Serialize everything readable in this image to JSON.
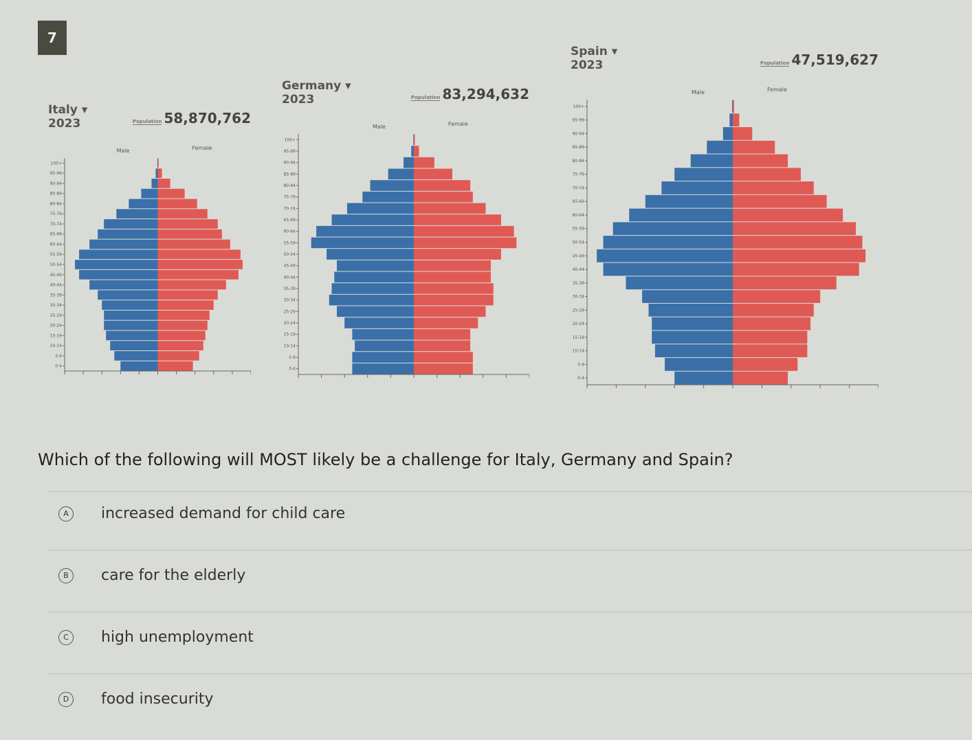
{
  "question_number": "7",
  "population_label": "Population",
  "male_label": "Male",
  "female_label": "Female",
  "colors": {
    "male": "#3a6fa8",
    "female": "#e05a55"
  },
  "chart_data": [
    {
      "type": "bar",
      "subtype": "population-pyramid",
      "country": "Italy ▾",
      "year": "2023",
      "population": "58,870,762",
      "age_groups": [
        "0-4",
        "5-9",
        "10-14",
        "15-19",
        "20-24",
        "25-29",
        "30-34",
        "35-39",
        "40-44",
        "45-49",
        "50-54",
        "55-59",
        "60-64",
        "65-69",
        "70-74",
        "75-79",
        "80-84",
        "85-89",
        "90-94",
        "95-99",
        "100+"
      ],
      "series": [
        {
          "name": "Male",
          "values": [
            1.8,
            2.1,
            2.3,
            2.5,
            2.6,
            2.6,
            2.7,
            2.9,
            3.3,
            3.8,
            4.0,
            3.8,
            3.3,
            2.9,
            2.6,
            2.0,
            1.4,
            0.8,
            0.3,
            0.1,
            0.02
          ]
        },
        {
          "name": "Female",
          "values": [
            1.7,
            2.0,
            2.2,
            2.3,
            2.4,
            2.5,
            2.7,
            2.9,
            3.3,
            3.9,
            4.1,
            4.0,
            3.5,
            3.1,
            2.9,
            2.4,
            1.9,
            1.3,
            0.6,
            0.2,
            0.04
          ]
        }
      ]
    },
    {
      "type": "bar",
      "subtype": "population-pyramid",
      "country": "Germany ▾",
      "year": "2023",
      "population": "83,294,632",
      "age_groups": [
        "0-4",
        "5-9",
        "10-14",
        "15-19",
        "20-24",
        "25-29",
        "30-34",
        "35-39",
        "40-44",
        "45-49",
        "50-54",
        "55-59",
        "60-64",
        "65-69",
        "70-74",
        "75-79",
        "80-84",
        "85-89",
        "90-94",
        "95-99",
        "100+"
      ],
      "series": [
        {
          "name": "Male",
          "values": [
            2.4,
            2.4,
            2.3,
            2.4,
            2.7,
            3.0,
            3.3,
            3.2,
            3.1,
            3.0,
            3.4,
            4.0,
            3.8,
            3.2,
            2.6,
            2.0,
            1.7,
            1.0,
            0.4,
            0.1,
            0.02
          ]
        },
        {
          "name": "Female",
          "values": [
            2.3,
            2.3,
            2.2,
            2.2,
            2.5,
            2.8,
            3.1,
            3.1,
            3.0,
            3.0,
            3.4,
            4.0,
            3.9,
            3.4,
            2.8,
            2.3,
            2.2,
            1.5,
            0.8,
            0.2,
            0.04
          ]
        }
      ]
    },
    {
      "type": "bar",
      "subtype": "population-pyramid",
      "country": "Spain ▾",
      "year": "2023",
      "population": "47,519,627",
      "age_groups": [
        "0-4",
        "5-9",
        "10-14",
        "15-19",
        "20-24",
        "25-29",
        "30-34",
        "35-39",
        "40-44",
        "45-49",
        "50-54",
        "55-59",
        "60-64",
        "65-69",
        "70-74",
        "75-79",
        "80-84",
        "85-89",
        "90-94",
        "95-99",
        "100+"
      ],
      "series": [
        {
          "name": "Male",
          "values": [
            1.8,
            2.1,
            2.4,
            2.5,
            2.5,
            2.6,
            2.8,
            3.3,
            4.0,
            4.2,
            4.0,
            3.7,
            3.2,
            2.7,
            2.2,
            1.8,
            1.3,
            0.8,
            0.3,
            0.1,
            0.02
          ]
        },
        {
          "name": "Female",
          "values": [
            1.7,
            2.0,
            2.3,
            2.3,
            2.4,
            2.5,
            2.7,
            3.2,
            3.9,
            4.1,
            4.0,
            3.8,
            3.4,
            2.9,
            2.5,
            2.1,
            1.7,
            1.3,
            0.6,
            0.2,
            0.04
          ]
        }
      ]
    }
  ],
  "question": "Which of the following will MOST likely be a challenge for Italy, Germany and Spain?",
  "options": [
    {
      "letter": "A",
      "text": "increased demand for child care"
    },
    {
      "letter": "B",
      "text": "care for the elderly"
    },
    {
      "letter": "C",
      "text": "high unemployment"
    },
    {
      "letter": "D",
      "text": "food insecurity"
    }
  ]
}
